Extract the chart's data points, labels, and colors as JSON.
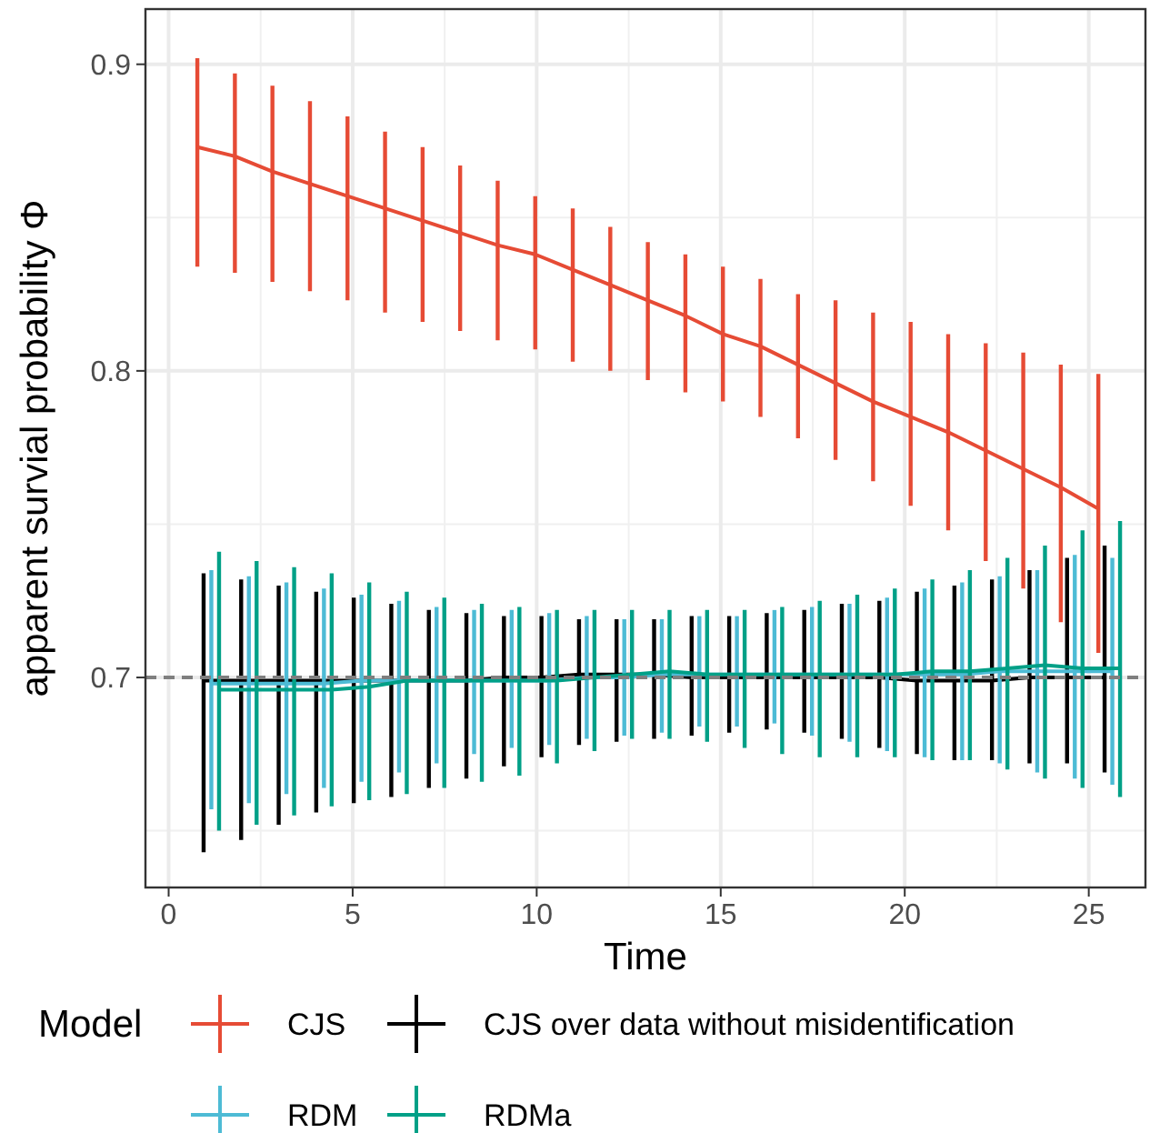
{
  "chart_data": {
    "type": "line",
    "xlabel": "Time",
    "ylabel": "apparent survial probability Φ",
    "legend_title": "Model",
    "legend": "bottom",
    "grid": true,
    "marker": "none",
    "xlim": [
      -0.63,
      26.54
    ],
    "xticks": [
      0,
      5,
      10,
      15,
      20,
      25
    ],
    "ylim": [
      0.6315,
      0.918
    ],
    "yticks": [
      0.7,
      0.8,
      0.9
    ],
    "ref_lines": [
      {
        "axis": "y",
        "value": 0.7,
        "color": "#7f7f7f",
        "line_style": "dashed"
      }
    ],
    "series": [
      {
        "name": "CJS",
        "color": "#e64b35",
        "x": [
          0.78,
          1.8,
          2.82,
          3.84,
          4.86,
          5.88,
          6.9,
          7.92,
          8.94,
          9.96,
          10.98,
          12,
          13.02,
          14.04,
          15.06,
          16.08,
          17.1,
          18.12,
          19.14,
          20.16,
          21.18,
          22.2,
          23.22,
          24.24,
          25.26
        ],
        "values": [
          0.873,
          0.87,
          0.865,
          0.861,
          0.857,
          0.853,
          0.849,
          0.845,
          0.841,
          0.838,
          0.833,
          0.828,
          0.823,
          0.818,
          0.812,
          0.808,
          0.802,
          0.796,
          0.79,
          0.785,
          0.78,
          0.774,
          0.768,
          0.762,
          0.755
        ],
        "errors": [
          [
            0.834,
            0.902
          ],
          [
            0.832,
            0.897
          ],
          [
            0.829,
            0.893
          ],
          [
            0.826,
            0.888
          ],
          [
            0.823,
            0.883
          ],
          [
            0.819,
            0.878
          ],
          [
            0.816,
            0.873
          ],
          [
            0.813,
            0.867
          ],
          [
            0.81,
            0.862
          ],
          [
            0.807,
            0.857
          ],
          [
            0.803,
            0.853
          ],
          [
            0.8,
            0.847
          ],
          [
            0.797,
            0.842
          ],
          [
            0.793,
            0.838
          ],
          [
            0.79,
            0.834
          ],
          [
            0.785,
            0.83
          ],
          [
            0.778,
            0.825
          ],
          [
            0.771,
            0.823
          ],
          [
            0.764,
            0.819
          ],
          [
            0.756,
            0.816
          ],
          [
            0.748,
            0.812
          ],
          [
            0.738,
            0.809
          ],
          [
            0.729,
            0.806
          ],
          [
            0.718,
            0.802
          ],
          [
            0.708,
            0.799
          ]
        ]
      },
      {
        "name": "CJS over data without misidentification",
        "color": "#000000",
        "x": [
          0.95,
          1.97,
          2.99,
          4.01,
          5.03,
          6.05,
          7.07,
          8.09,
          9.11,
          10.13,
          11.15,
          12.17,
          13.19,
          14.21,
          15.23,
          16.25,
          17.27,
          18.29,
          19.31,
          20.33,
          21.35,
          22.37,
          23.39,
          24.41,
          25.43
        ],
        "values": [
          0.699,
          0.699,
          0.699,
          0.699,
          0.699,
          0.699,
          0.699,
          0.699,
          0.7,
          0.7,
          0.701,
          0.701,
          0.701,
          0.7,
          0.7,
          0.7,
          0.7,
          0.7,
          0.7,
          0.699,
          0.699,
          0.699,
          0.7,
          0.7,
          0.7
        ],
        "errors": [
          [
            0.643,
            0.734
          ],
          [
            0.647,
            0.732
          ],
          [
            0.652,
            0.73
          ],
          [
            0.656,
            0.728
          ],
          [
            0.659,
            0.726
          ],
          [
            0.661,
            0.724
          ],
          [
            0.664,
            0.722
          ],
          [
            0.667,
            0.721
          ],
          [
            0.671,
            0.72
          ],
          [
            0.674,
            0.72
          ],
          [
            0.678,
            0.719
          ],
          [
            0.679,
            0.719
          ],
          [
            0.68,
            0.719
          ],
          [
            0.681,
            0.72
          ],
          [
            0.682,
            0.72
          ],
          [
            0.683,
            0.721
          ],
          [
            0.682,
            0.722
          ],
          [
            0.68,
            0.724
          ],
          [
            0.677,
            0.725
          ],
          [
            0.675,
            0.728
          ],
          [
            0.673,
            0.73
          ],
          [
            0.673,
            0.732
          ],
          [
            0.672,
            0.735
          ],
          [
            0.672,
            0.739
          ],
          [
            0.669,
            0.743
          ]
        ]
      },
      {
        "name": "RDM",
        "color": "#4dbbd5",
        "x": [
          1.16,
          2.18,
          3.2,
          4.22,
          5.24,
          6.26,
          7.28,
          8.3,
          9.32,
          10.34,
          11.36,
          12.38,
          13.4,
          14.42,
          15.44,
          16.46,
          17.48,
          18.5,
          19.52,
          20.54,
          21.56,
          22.58,
          23.6,
          24.62,
          25.64
        ],
        "values": [
          0.698,
          0.698,
          0.698,
          0.698,
          0.699,
          0.699,
          0.699,
          0.699,
          0.699,
          0.699,
          0.7,
          0.7,
          0.701,
          0.701,
          0.701,
          0.701,
          0.701,
          0.701,
          0.701,
          0.701,
          0.701,
          0.702,
          0.702,
          0.702,
          0.702
        ],
        "errors": [
          [
            0.657,
            0.735
          ],
          [
            0.659,
            0.733
          ],
          [
            0.662,
            0.731
          ],
          [
            0.664,
            0.729
          ],
          [
            0.666,
            0.727
          ],
          [
            0.669,
            0.725
          ],
          [
            0.672,
            0.723
          ],
          [
            0.675,
            0.722
          ],
          [
            0.677,
            0.722
          ],
          [
            0.678,
            0.721
          ],
          [
            0.68,
            0.72
          ],
          [
            0.681,
            0.719
          ],
          [
            0.682,
            0.719
          ],
          [
            0.684,
            0.72
          ],
          [
            0.684,
            0.72
          ],
          [
            0.685,
            0.722
          ],
          [
            0.681,
            0.723
          ],
          [
            0.679,
            0.724
          ],
          [
            0.676,
            0.726
          ],
          [
            0.674,
            0.729
          ],
          [
            0.673,
            0.731
          ],
          [
            0.672,
            0.733
          ],
          [
            0.669,
            0.735
          ],
          [
            0.667,
            0.74
          ],
          [
            0.665,
            0.739
          ]
        ]
      },
      {
        "name": "RDMa",
        "color": "#00a087",
        "x": [
          1.37,
          2.39,
          3.41,
          4.43,
          5.45,
          6.47,
          7.49,
          8.51,
          9.53,
          10.55,
          11.57,
          12.59,
          13.61,
          14.63,
          15.65,
          16.67,
          17.69,
          18.71,
          19.73,
          20.75,
          21.77,
          22.79,
          23.81,
          24.83,
          25.85
        ],
        "values": [
          0.696,
          0.696,
          0.696,
          0.696,
          0.697,
          0.699,
          0.699,
          0.699,
          0.699,
          0.699,
          0.7,
          0.701,
          0.702,
          0.701,
          0.701,
          0.701,
          0.701,
          0.701,
          0.701,
          0.702,
          0.702,
          0.703,
          0.704,
          0.703,
          0.703
        ],
        "errors": [
          [
            0.65,
            0.741
          ],
          [
            0.652,
            0.738
          ],
          [
            0.655,
            0.736
          ],
          [
            0.658,
            0.734
          ],
          [
            0.66,
            0.731
          ],
          [
            0.662,
            0.728
          ],
          [
            0.664,
            0.726
          ],
          [
            0.666,
            0.724
          ],
          [
            0.668,
            0.723
          ],
          [
            0.672,
            0.722
          ],
          [
            0.676,
            0.722
          ],
          [
            0.68,
            0.722
          ],
          [
            0.68,
            0.722
          ],
          [
            0.679,
            0.722
          ],
          [
            0.677,
            0.722
          ],
          [
            0.675,
            0.723
          ],
          [
            0.674,
            0.725
          ],
          [
            0.674,
            0.727
          ],
          [
            0.674,
            0.729
          ],
          [
            0.673,
            0.732
          ],
          [
            0.673,
            0.735
          ],
          [
            0.67,
            0.739
          ],
          [
            0.667,
            0.743
          ],
          [
            0.664,
            0.748
          ],
          [
            0.661,
            0.751
          ]
        ]
      }
    ]
  }
}
